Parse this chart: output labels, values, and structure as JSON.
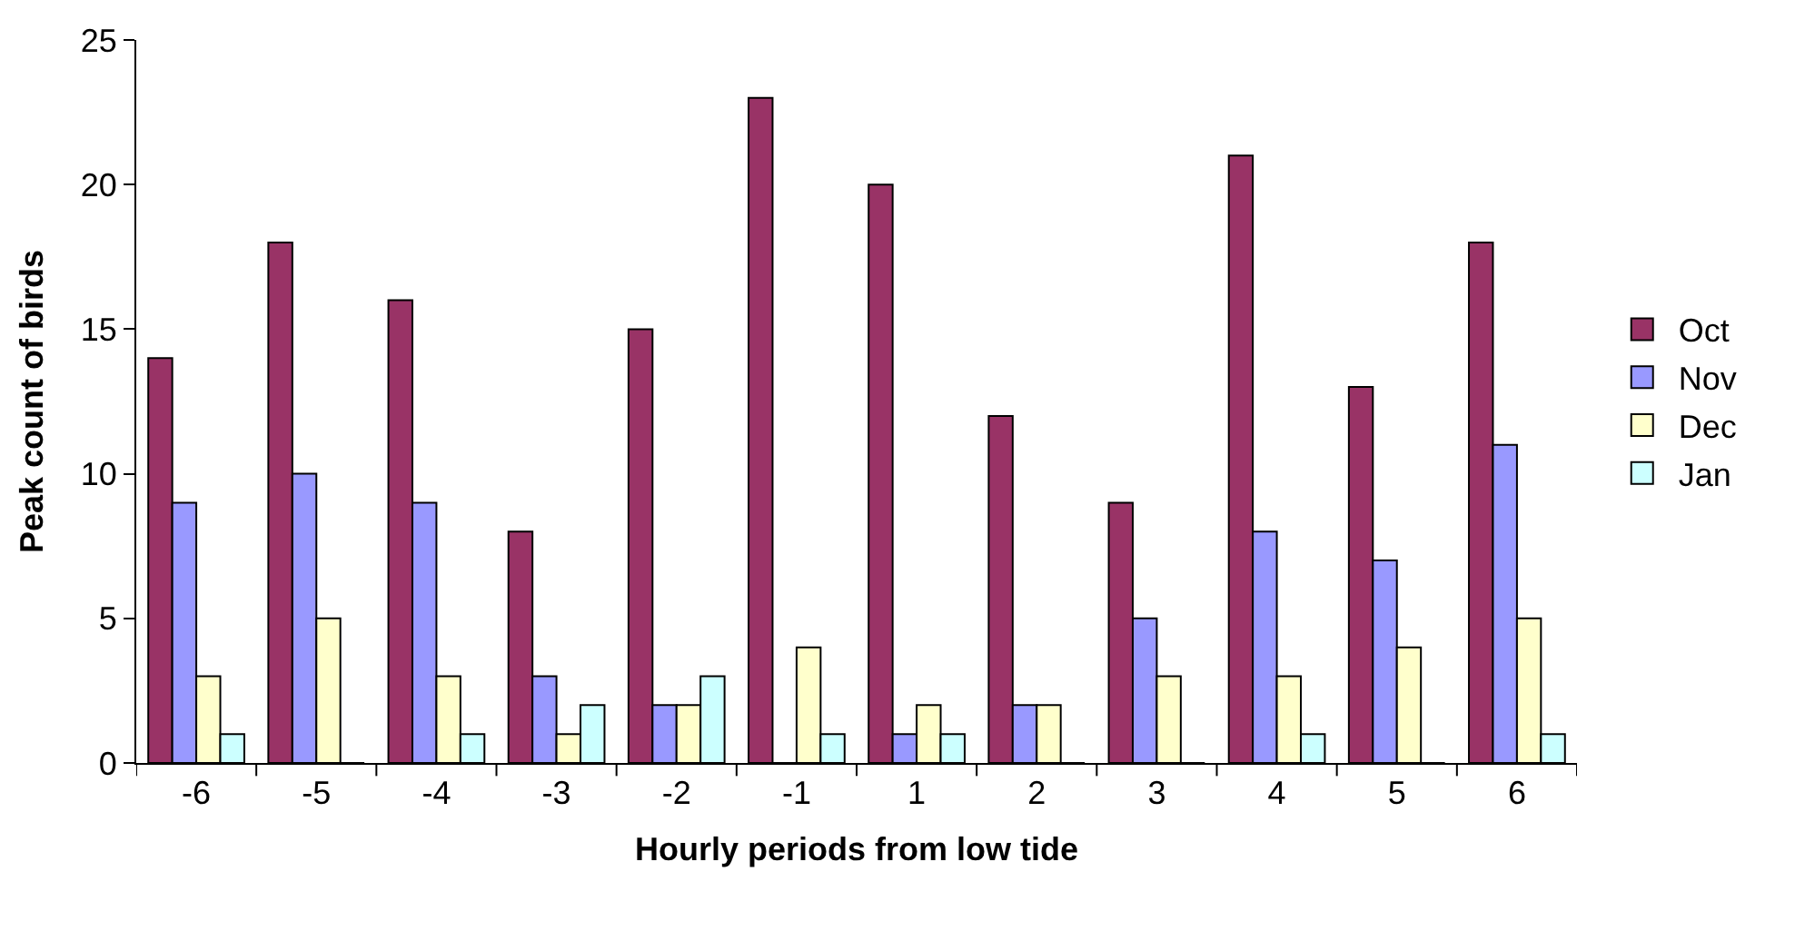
{
  "chart_data": {
    "type": "bar",
    "xlabel": "Hourly periods from low tide",
    "ylabel": "Peak count of birds",
    "categories": [
      "-6",
      "-5",
      "-4",
      "-3",
      "-2",
      "-1",
      "1",
      "2",
      "3",
      "4",
      "5",
      "6"
    ],
    "series": [
      {
        "name": "Oct",
        "color": "#993366",
        "values": [
          14,
          18,
          16,
          8,
          15,
          23,
          20,
          12,
          9,
          21,
          13,
          18
        ]
      },
      {
        "name": "Nov",
        "color": "#9999ff",
        "values": [
          9,
          10,
          9,
          3,
          2,
          0,
          1,
          2,
          5,
          8,
          7,
          11
        ]
      },
      {
        "name": "Dec",
        "color": "#ffffcc",
        "values": [
          3,
          5,
          3,
          1,
          2,
          4,
          2,
          2,
          3,
          3,
          4,
          5
        ]
      },
      {
        "name": "Jan",
        "color": "#ccffff",
        "values": [
          1,
          0,
          1,
          2,
          3,
          1,
          1,
          0,
          0,
          1,
          0,
          1
        ]
      }
    ],
    "ylim": [
      0,
      25
    ],
    "yticks": [
      0,
      5,
      10,
      15,
      20,
      25
    ],
    "legend": "right"
  }
}
